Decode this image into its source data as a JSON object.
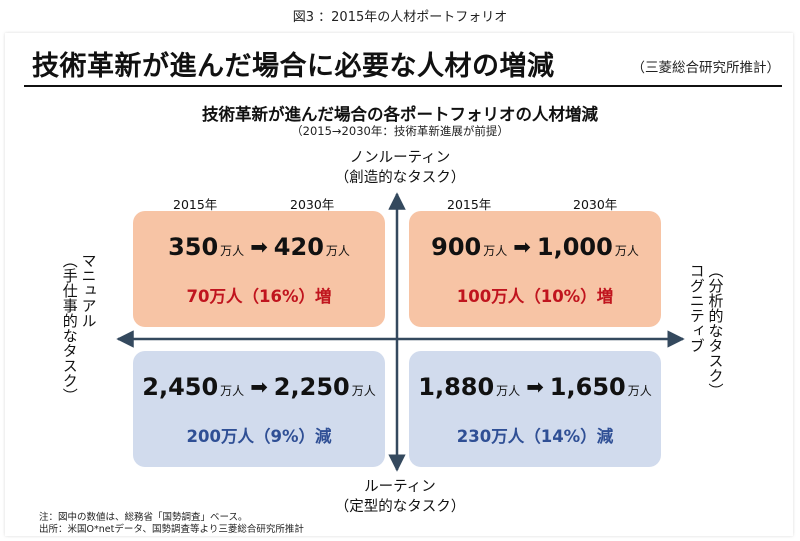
{
  "figure_caption": "図3 ：2015年の人材ポートフォリオ",
  "header": {
    "title": "技術革新が進んだ場合に必要な人材の増減",
    "source": "（三菱総合研究所推計）"
  },
  "chart_data": {
    "type": "quadrant",
    "title": "技術革新が進んだ場合の各ポートフォリオの人材増減",
    "subtitle": "（2015→2030年：技術革新進展が前提）",
    "axes": {
      "top": [
        "ノンルーティン",
        "（創造的なタスク）"
      ],
      "bottom": [
        "ルーティン",
        "（定型的なタスク）"
      ],
      "left": [
        "マニュアル",
        "（手仕事的なタスク）"
      ],
      "right": [
        "コグニティブ",
        "（分析的なタスク）"
      ]
    },
    "years": {
      "from": "2015年",
      "to": "2030年"
    },
    "unit": "万人",
    "arrow_glyph": "➡",
    "quadrants": [
      {
        "position": "top-left",
        "from": "350",
        "to": "420",
        "change": "70万人（16%）増",
        "direction": "increase"
      },
      {
        "position": "top-right",
        "from": "900",
        "to": "1,000",
        "change": "100万人（10%）増",
        "direction": "increase"
      },
      {
        "position": "bottom-left",
        "from": "2,450",
        "to": "2,250",
        "change": "200万人（9%）減",
        "direction": "decrease"
      },
      {
        "position": "bottom-right",
        "from": "1,880",
        "to": "1,650",
        "change": "230万人（14%）減",
        "direction": "decrease"
      }
    ],
    "colors": {
      "increase_fill": "#f7c4a5",
      "decrease_fill": "#d1dbed",
      "increase_text": "#c0141e",
      "decrease_text": "#2f4f95",
      "axis": "#34495e"
    }
  },
  "footnotes": [
    "注：図中の数値は、総務省「国勢調査」ベース。",
    "出所：米国O*netデータ、国勢調査等より三菱総合研究所推計"
  ]
}
